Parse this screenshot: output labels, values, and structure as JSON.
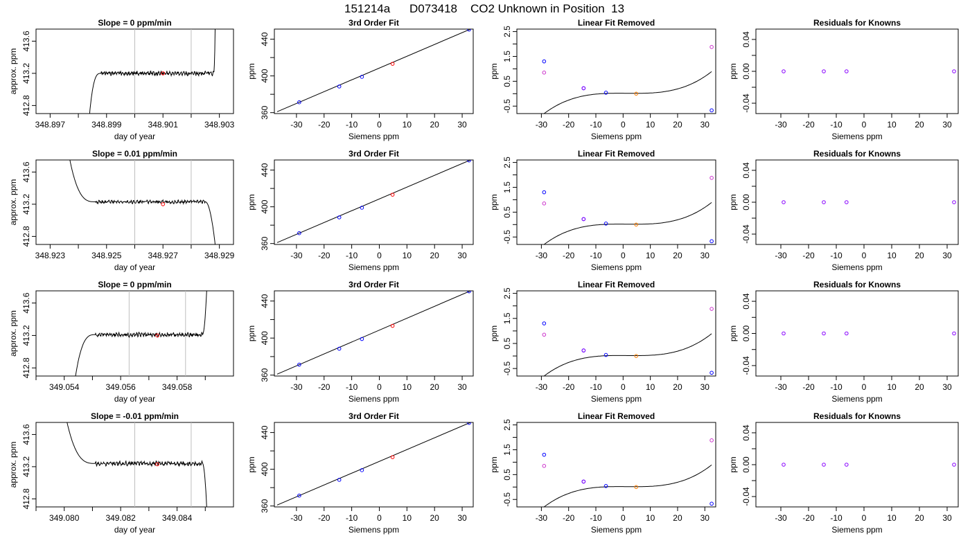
{
  "header": {
    "run_id": "151214a",
    "tank_id": "D073418",
    "description": "CO2 Unknown in Position  13"
  },
  "colors": {
    "trace": "#000000",
    "marker_red": "#ff0000",
    "marker_blue": "#0000ff",
    "marker_orange": "#ff7f00",
    "marker_magenta": "#cc33cc",
    "marker_purple": "#8800ff",
    "vline": "#bebebe"
  },
  "chart_data": [
    {
      "type": "line",
      "panel": "time-series",
      "row": 0,
      "title": "Slope =  0  ppm/min",
      "xlabel": "day of year",
      "ylabel": "approx. ppm",
      "xlim": [
        348.8965,
        348.9035
      ],
      "ylim": [
        412.7,
        413.75
      ],
      "xticks": [
        348.897,
        348.899,
        348.901,
        348.903
      ],
      "xtick_labels": [
        "348.897",
        "348.899",
        "348.901",
        "348.903"
      ],
      "xminor": [
        348.898,
        348.9,
        348.902
      ],
      "yticks": [
        412.8,
        413.2,
        413.6
      ],
      "ytick_labels": [
        "412.8",
        "413.2",
        "413.6"
      ],
      "vlines": [
        348.9,
        348.902
      ],
      "marker": {
        "x": 348.901,
        "y": 413.2,
        "color": "red"
      },
      "trace": {
        "start_x": 348.8984,
        "rise_end_x": 348.8988,
        "plateau": 413.2,
        "end_x": 348.90285,
        "end_y": 413.75,
        "start_y": 412.7,
        "plateau_start_x": 348.8988,
        "plateau_end_x": 348.9028,
        "noise": 0.02,
        "seed": 3
      }
    },
    {
      "type": "line",
      "panel": "time-series",
      "row": 1,
      "title": "Slope =  0.01  ppm/min",
      "xlabel": "day of year",
      "ylabel": "approx. ppm",
      "xlim": [
        348.9225,
        348.9295
      ],
      "ylim": [
        412.7,
        413.75
      ],
      "xticks": [
        348.923,
        348.925,
        348.927,
        348.929
      ],
      "xtick_labels": [
        "348.923",
        "348.925",
        "348.927",
        "348.929"
      ],
      "xminor": [
        348.924,
        348.926,
        348.928
      ],
      "yticks": [
        412.8,
        413.2,
        413.6
      ],
      "ytick_labels": [
        "412.8",
        "413.2",
        "413.6"
      ],
      "vlines": [
        348.926,
        348.928
      ],
      "marker": {
        "x": 348.927,
        "y": 413.2,
        "color": "red"
      },
      "trace": {
        "start_x": 348.9237,
        "start_y": 413.75,
        "plateau_start_x": 348.9246,
        "plateau": 413.23,
        "plateau_end_x": 348.9285,
        "end_x": 348.92885,
        "end_y": 412.7,
        "noise": 0.015,
        "seed": 7
      }
    },
    {
      "type": "line",
      "panel": "time-series",
      "row": 2,
      "title": "Slope =  0  ppm/min",
      "xlabel": "day of year",
      "ylabel": "approx. ppm",
      "xlim": [
        349.053,
        349.06
      ],
      "ylim": [
        412.7,
        413.75
      ],
      "xticks": [
        349.054,
        349.056,
        349.058
      ],
      "xtick_labels": [
        "349.054",
        "349.056",
        "349.058"
      ],
      "xminor": [
        349.053,
        349.055,
        349.057,
        349.059
      ],
      "yticks": [
        412.8,
        413.2,
        413.6
      ],
      "ytick_labels": [
        "412.8",
        "413.2",
        "413.6"
      ],
      "vlines": [
        349.0563,
        349.0583
      ],
      "marker": {
        "x": 349.0573,
        "y": 413.2,
        "color": "red"
      },
      "trace": {
        "start_x": 349.0544,
        "start_y": 412.7,
        "plateau_start_x": 349.0551,
        "plateau": 413.21,
        "plateau_end_x": 349.0589,
        "end_x": 349.05905,
        "end_y": 413.75,
        "noise": 0.02,
        "seed": 11
      }
    },
    {
      "type": "line",
      "panel": "time-series",
      "row": 3,
      "title": "Slope =  -0.01  ppm/min",
      "xlabel": "day of year",
      "ylabel": "approx. ppm",
      "xlim": [
        349.079,
        349.086
      ],
      "ylim": [
        412.7,
        413.75
      ],
      "xticks": [
        349.08,
        349.082,
        349.084
      ],
      "xtick_labels": [
        "349.080",
        "349.082",
        "349.084"
      ],
      "xminor": [
        349.079,
        349.081,
        349.083,
        349.085
      ],
      "yticks": [
        412.8,
        413.2,
        413.6
      ],
      "ytick_labels": [
        "412.8",
        "413.2",
        "413.6"
      ],
      "vlines": [
        349.0825,
        349.0845
      ],
      "marker": {
        "x": 349.0833,
        "y": 413.23,
        "color": "red"
      },
      "trace": {
        "start_x": 349.0801,
        "start_y": 413.75,
        "plateau_start_x": 349.0811,
        "plateau": 413.24,
        "plateau_end_x": 349.0849,
        "end_x": 349.08505,
        "end_y": 412.7,
        "noise": 0.02,
        "seed": 19
      }
    },
    {
      "type": "scatter",
      "panel": "fit",
      "title": "3rd Order Fit",
      "xlabel": "Siemens ppm",
      "ylabel": "ppm",
      "xlim": [
        -38,
        34
      ],
      "ylim": [
        359,
        451
      ],
      "xticks": [
        -30,
        -20,
        -10,
        0,
        10,
        20,
        30
      ],
      "xtick_labels": [
        "-30",
        "-20",
        "-10",
        "0",
        "10",
        "20",
        "30"
      ],
      "yticks": [
        360,
        400,
        440
      ],
      "ytick_labels": [
        "360",
        "400",
        "440"
      ],
      "yminor": [
        380,
        420
      ],
      "line": {
        "x0": -37,
        "y0": 361,
        "x1": 33,
        "y1": 451
      },
      "points": [
        {
          "x": -29,
          "y": 371.3,
          "color": "blue"
        },
        {
          "x": -14.5,
          "y": 388.5,
          "color": "blue"
        },
        {
          "x": -6.3,
          "y": 399.0,
          "color": "blue"
        },
        {
          "x": 4.8,
          "y": 413.2,
          "color": "red"
        },
        {
          "x": 32.5,
          "y": 450.5,
          "color": "blue"
        }
      ]
    },
    {
      "type": "scatter",
      "panel": "linear-fit-removed",
      "title": "Linear Fit Removed",
      "xlabel": "Siemens ppm",
      "ylabel": "ppm",
      "xlim": [
        -39,
        34
      ],
      "ylim": [
        -0.8,
        2.6
      ],
      "xticks": [
        -30,
        -20,
        -10,
        0,
        10,
        20,
        30
      ],
      "xtick_labels": [
        "-30",
        "-20",
        "-10",
        "0",
        "10",
        "20",
        "30"
      ],
      "yticks": [
        -0.5,
        0.5,
        1.5,
        2.5
      ],
      "ytick_labels": [
        "-0.5",
        "0.5",
        "1.5",
        "2.5"
      ],
      "yminor": [
        0,
        1,
        2
      ],
      "curve": {
        "a": 3e-05,
        "b": -0.000127,
        "c": -0.000726,
        "d": 0.018,
        "x0": -37.5,
        "x1": 32.5
      },
      "points": [
        {
          "x": -29,
          "y": 1.3,
          "color": "blue"
        },
        {
          "x": -29,
          "y": 0.85,
          "color": "magenta"
        },
        {
          "x": -14.5,
          "y": 0.22,
          "color": "blue"
        },
        {
          "x": -14.5,
          "y": 0.22,
          "color": "purple"
        },
        {
          "x": -6.3,
          "y": 0.04,
          "color": "blue"
        },
        {
          "x": 4.8,
          "y": 0.0,
          "color": "orange"
        },
        {
          "x": 32.5,
          "y": -0.67,
          "color": "blue"
        },
        {
          "x": 32.5,
          "y": 1.88,
          "color": "magenta"
        }
      ]
    },
    {
      "type": "scatter",
      "panel": "residuals",
      "title": "Residuals for Knowns",
      "xlabel": "Siemens ppm",
      "ylabel": "ppm",
      "xlim": [
        -39,
        34
      ],
      "ylim": [
        -0.053,
        0.053
      ],
      "xticks": [
        -30,
        -20,
        -10,
        0,
        10,
        20,
        30
      ],
      "xtick_labels": [
        "-30",
        "-20",
        "-10",
        "0",
        "10",
        "20",
        "30"
      ],
      "yticks": [
        -0.04,
        0.0,
        0.04
      ],
      "ytick_labels": [
        "-0.04",
        "0.00",
        "0.04"
      ],
      "yminor": [
        -0.02,
        0.02
      ],
      "points": [
        {
          "x": -29,
          "y": 0.0,
          "color": "purple"
        },
        {
          "x": -14.5,
          "y": 0.0,
          "color": "purple"
        },
        {
          "x": -6.3,
          "y": 0.0,
          "color": "purple"
        },
        {
          "x": 32.5,
          "y": 0.0,
          "color": "purple"
        }
      ]
    }
  ]
}
